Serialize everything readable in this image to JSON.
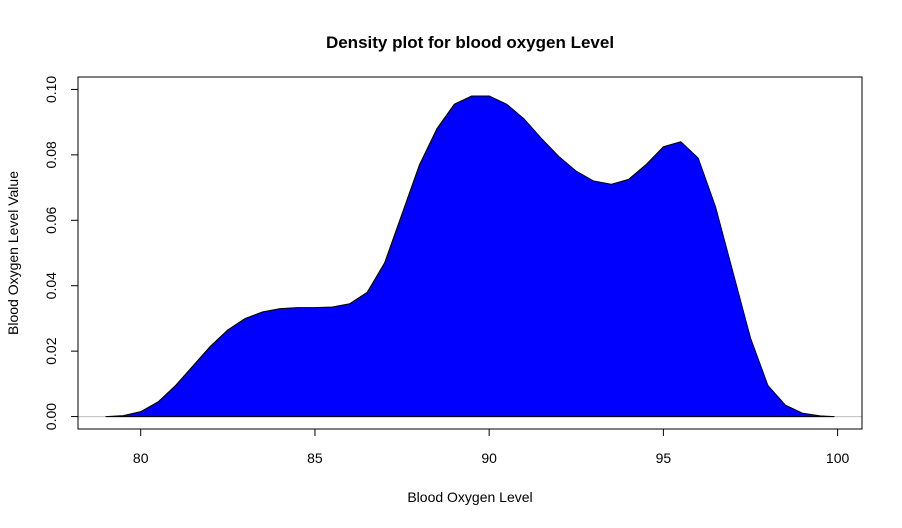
{
  "chart_data": {
    "type": "area",
    "title": "Density plot for blood oxygen Level",
    "xlabel": "Blood Oxygen Level",
    "ylabel": "Blood Oxygen Level Value",
    "xlim": [
      78.2,
      100.7
    ],
    "ylim": [
      -0.0038,
      0.1038
    ],
    "x_ticks": [
      80,
      85,
      90,
      95,
      100
    ],
    "y_ticks": [
      0.0,
      0.02,
      0.04,
      0.06,
      0.08,
      0.1
    ],
    "x_tick_labels": [
      "80",
      "85",
      "90",
      "95",
      "100"
    ],
    "y_tick_labels": [
      "0.00",
      "0.02",
      "0.04",
      "0.06",
      "0.08",
      "0.10"
    ],
    "grid": false,
    "baseline": 0,
    "colors": {
      "fill": "#0000ff",
      "line": "#000000",
      "baseline": "#bebebe"
    },
    "series": [
      {
        "x": [
          79.0,
          79.5,
          80.0,
          80.5,
          81.0,
          81.5,
          82.0,
          82.5,
          83.0,
          83.5,
          84.0,
          84.5,
          85.0,
          85.5,
          86.0,
          86.5,
          87.0,
          87.5,
          88.0,
          88.5,
          89.0,
          89.5,
          90.0,
          90.5,
          91.0,
          91.5,
          92.0,
          92.5,
          93.0,
          93.5,
          94.0,
          94.5,
          95.0,
          95.5,
          96.0,
          96.5,
          97.0,
          97.5,
          98.0,
          98.5,
          99.0,
          99.5,
          99.9
        ],
        "y": [
          0.0,
          0.0003,
          0.0015,
          0.0045,
          0.0095,
          0.0155,
          0.0215,
          0.0265,
          0.03,
          0.032,
          0.033,
          0.0333,
          0.0333,
          0.0335,
          0.0345,
          0.038,
          0.047,
          0.062,
          0.077,
          0.088,
          0.0955,
          0.098,
          0.098,
          0.0955,
          0.091,
          0.085,
          0.0795,
          0.075,
          0.072,
          0.071,
          0.0725,
          0.077,
          0.0825,
          0.084,
          0.079,
          0.064,
          0.044,
          0.024,
          0.0095,
          0.0035,
          0.001,
          0.0002,
          0.0
        ]
      }
    ]
  }
}
